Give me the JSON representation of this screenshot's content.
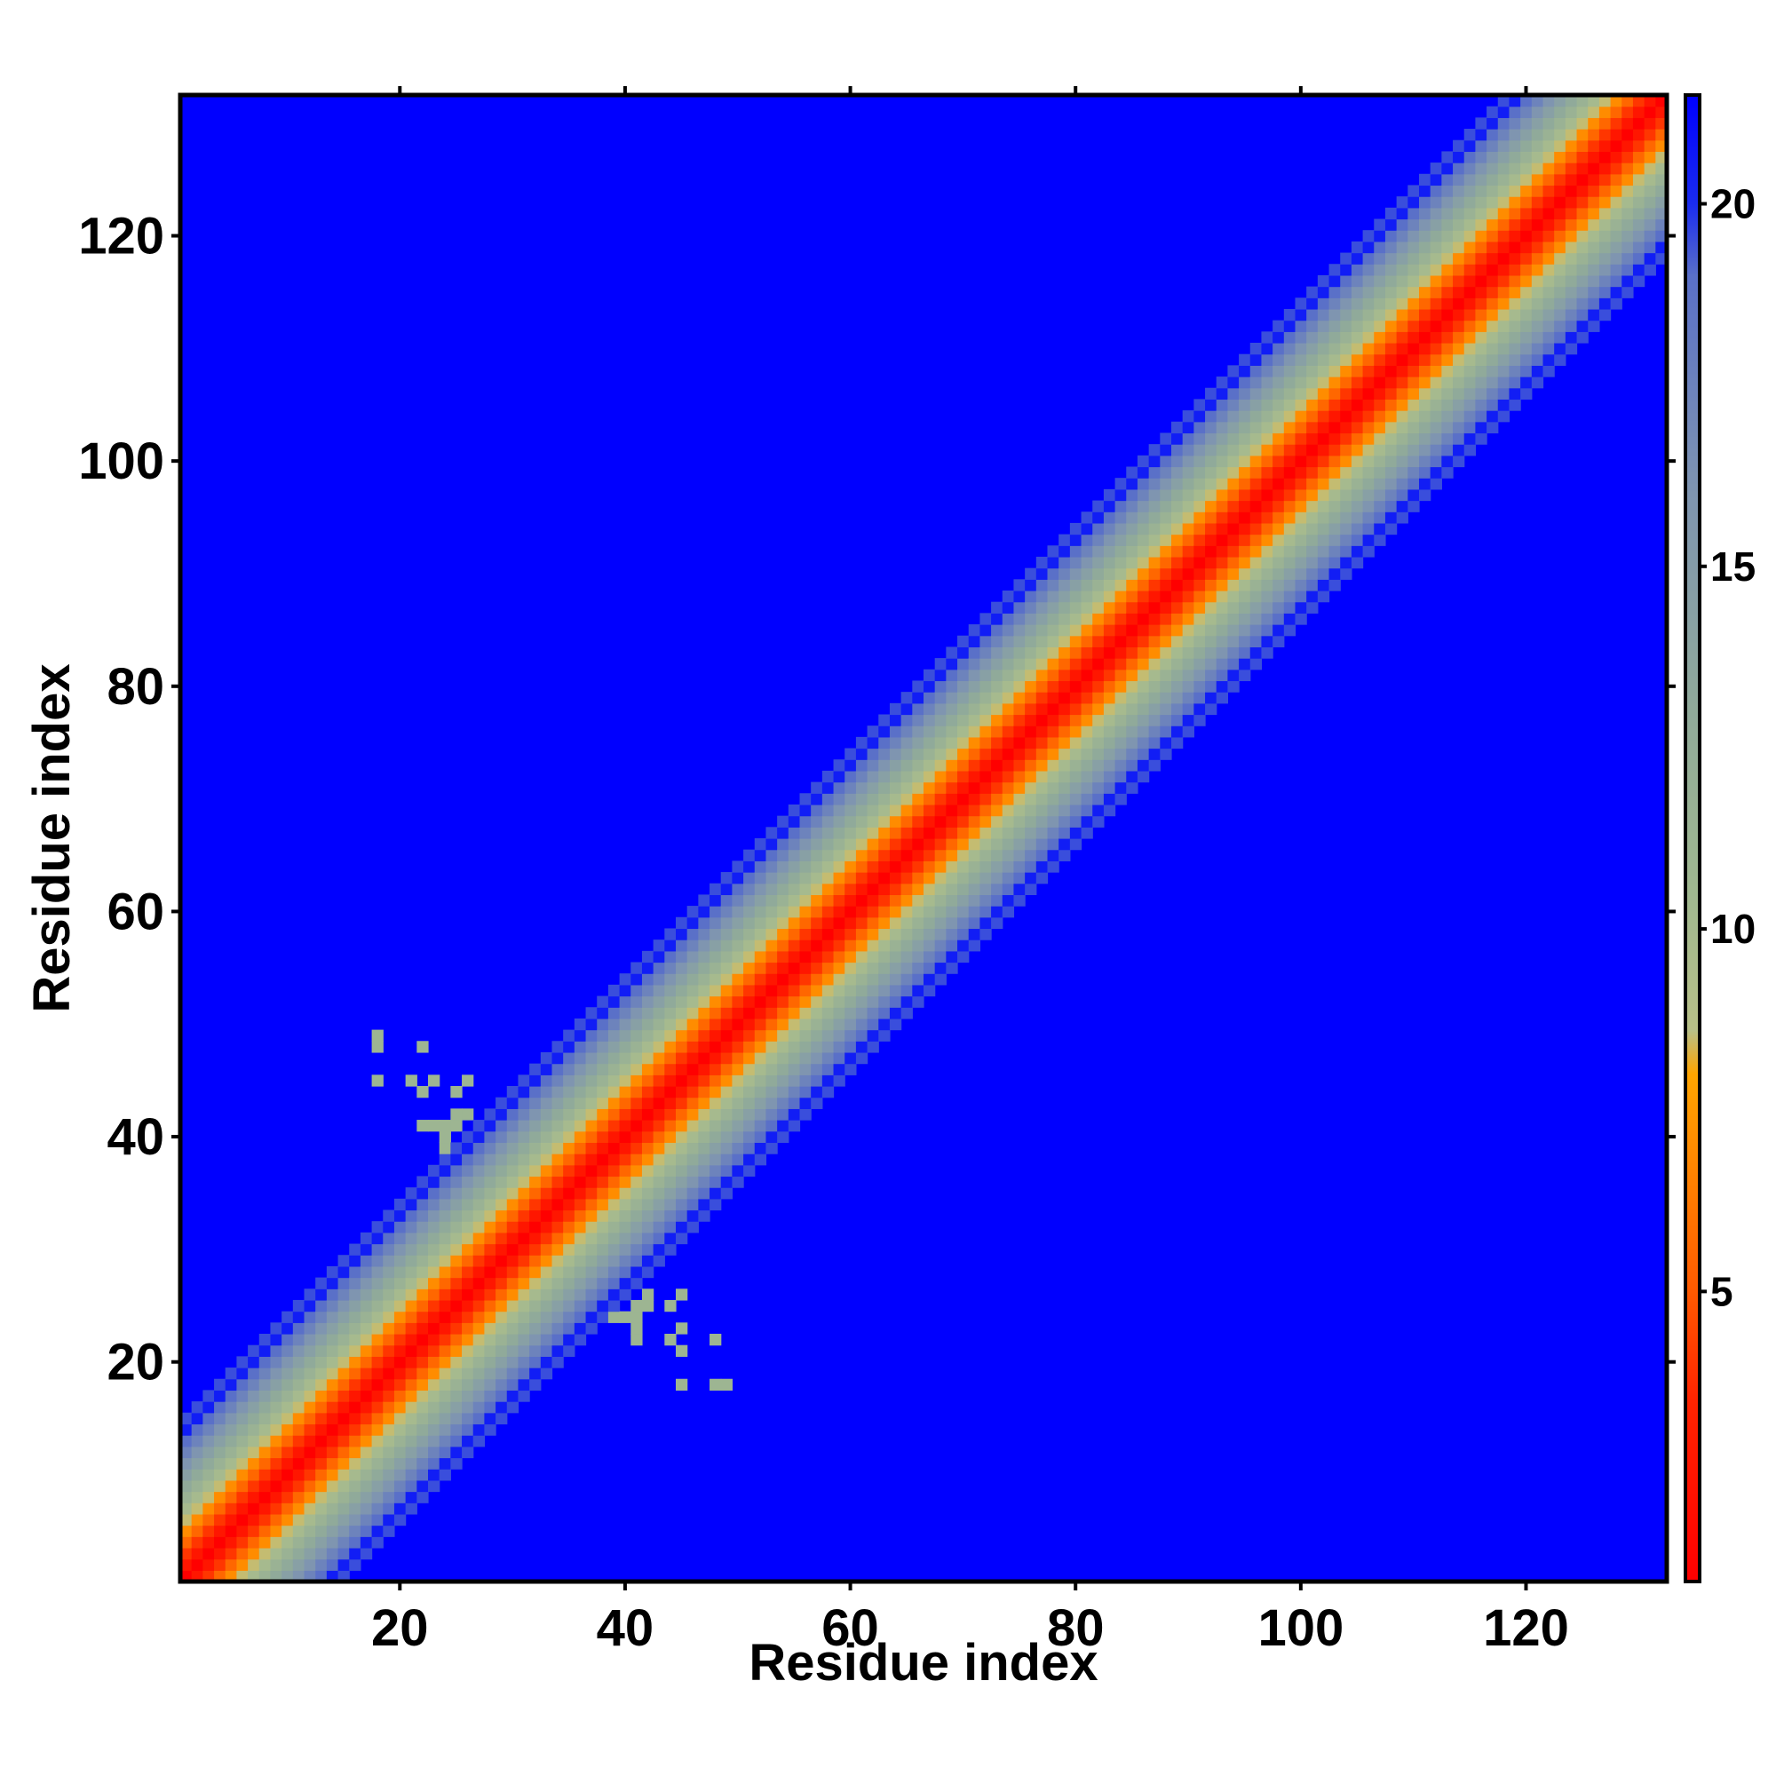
{
  "chart_data": {
    "type": "heatmap",
    "title": "",
    "xlabel": "Residue index",
    "ylabel": "Residue index",
    "n_residues": 132,
    "xlim": [
      0.5,
      132.5
    ],
    "ylim": [
      0.5,
      132.5
    ],
    "x_ticks": [
      20,
      40,
      60,
      80,
      100,
      120
    ],
    "y_ticks": [
      20,
      40,
      60,
      80,
      100,
      120
    ],
    "x_tick_labels": [
      "20",
      "40",
      "60",
      "80",
      "100",
      "120"
    ],
    "y_tick_labels": [
      "20",
      "40",
      "60",
      "80",
      "100",
      "120"
    ],
    "colorbar": {
      "range": [
        1,
        21.5
      ],
      "ticks": [
        5,
        10,
        15,
        20
      ],
      "tick_labels": [
        "5",
        "10",
        "15",
        "20"
      ],
      "stops": [
        {
          "value": 1,
          "color": "#ff0000"
        },
        {
          "value": 3.5,
          "color": "#ff2400"
        },
        {
          "value": 5,
          "color": "#ff5a00"
        },
        {
          "value": 6.5,
          "color": "#ff8000"
        },
        {
          "value": 8,
          "color": "#ffa500"
        },
        {
          "value": 8.6,
          "color": "#b8c088"
        },
        {
          "value": 10.5,
          "color": "#a0b890"
        },
        {
          "value": 13,
          "color": "#90aa9a"
        },
        {
          "value": 16,
          "color": "#7f95b0"
        },
        {
          "value": 19,
          "color": "#5a70c8"
        },
        {
          "value": 20,
          "color": "#1a2cf0"
        },
        {
          "value": 21.5,
          "color": "#0000ff"
        }
      ]
    },
    "matrix_model": {
      "description_value_rule": "distance between residue i and residue j",
      "diagonal_band_half_width_residues": 14,
      "band_scale_factor": 1.5,
      "cap_value": 21.5
    },
    "off_diagonal_contacts": [
      [
        18,
        49
      ],
      [
        18,
        48
      ],
      [
        22,
        48
      ],
      [
        18,
        45
      ],
      [
        21,
        45
      ],
      [
        23,
        45
      ],
      [
        26,
        45
      ],
      [
        22,
        44
      ],
      [
        25,
        44
      ],
      [
        25,
        42
      ],
      [
        26,
        42
      ],
      [
        22,
        41
      ],
      [
        23,
        41
      ],
      [
        24,
        41
      ],
      [
        25,
        41
      ],
      [
        27,
        41
      ],
      [
        28,
        41
      ],
      [
        24,
        40
      ],
      [
        26,
        40
      ],
      [
        27,
        40
      ],
      [
        24,
        39
      ],
      [
        25,
        39
      ],
      [
        26,
        39
      ],
      [
        24,
        38
      ],
      [
        25,
        38
      ],
      [
        27,
        38
      ],
      [
        28,
        38
      ],
      [
        49,
        18
      ],
      [
        48,
        18
      ],
      [
        48,
        22
      ],
      [
        45,
        18
      ],
      [
        45,
        21
      ],
      [
        45,
        23
      ],
      [
        45,
        26
      ],
      [
        44,
        22
      ],
      [
        44,
        25
      ],
      [
        42,
        25
      ],
      [
        42,
        26
      ],
      [
        41,
        22
      ],
      [
        41,
        23
      ],
      [
        41,
        24
      ],
      [
        41,
        25
      ],
      [
        41,
        27
      ],
      [
        41,
        28
      ],
      [
        40,
        24
      ],
      [
        40,
        26
      ],
      [
        40,
        27
      ],
      [
        39,
        24
      ],
      [
        39,
        25
      ],
      [
        39,
        26
      ],
      [
        38,
        24
      ],
      [
        38,
        25
      ],
      [
        38,
        27
      ],
      [
        38,
        28
      ]
    ],
    "contact_value": 11
  }
}
